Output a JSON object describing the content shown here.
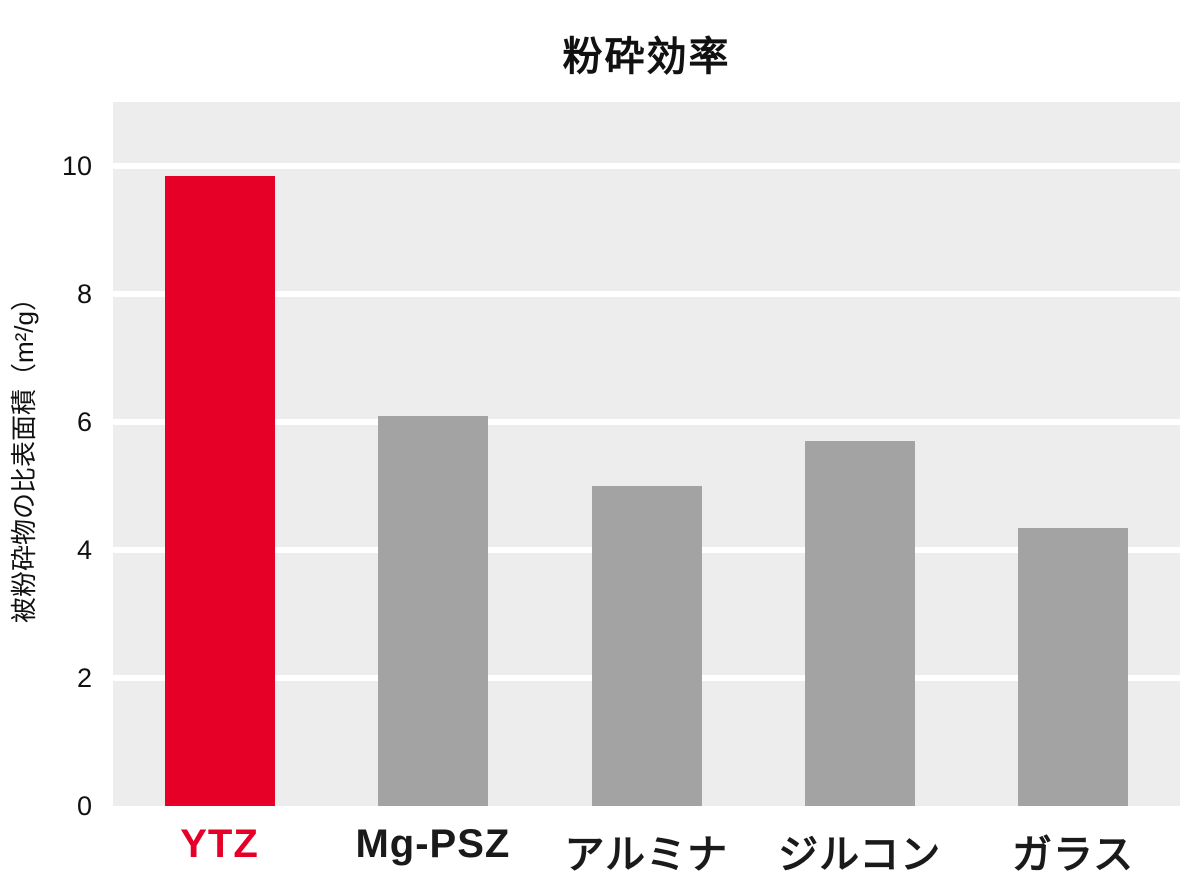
{
  "title": "粉砕効率",
  "y_axis": {
    "label": "被粉砕物の比表面積（m²/g）",
    "ticks": [
      0,
      2,
      4,
      6,
      8,
      10
    ]
  },
  "chart_data": {
    "type": "bar",
    "title": "粉砕効率",
    "categories": [
      "YTZ",
      "Mg-PSZ",
      "アルミナ",
      "ジルコン",
      "ガラス"
    ],
    "values": [
      9.85,
      6.1,
      5.0,
      5.7,
      4.35
    ],
    "bar_colors": [
      "#e60028",
      "#a3a3a3",
      "#a3a3a3",
      "#a3a3a3",
      "#a3a3a3"
    ],
    "label_colors": [
      "#e60028",
      "#1a1a1a",
      "#1a1a1a",
      "#1a1a1a",
      "#1a1a1a"
    ],
    "xlabel": "",
    "ylabel": "被粉砕物の比表面積（m²/g）",
    "ylim": [
      0,
      11
    ],
    "yticks": [
      0,
      2,
      4,
      6,
      8,
      10
    ],
    "gridline_values": [
      2,
      4,
      6,
      8,
      10
    ],
    "grid_color": "#ffffff",
    "plot_background": "#ededed",
    "page_background": "#ffffff",
    "legend_position": "none"
  }
}
